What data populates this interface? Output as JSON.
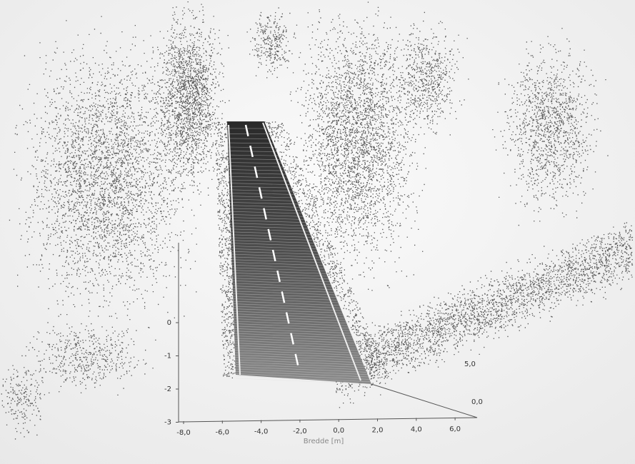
{
  "axes": {
    "x": {
      "label": "Bredde [m]",
      "ticks": [
        "-8,0",
        "-6,0",
        "-4,0",
        "-2,0",
        "0,0",
        "2,0",
        "4,0",
        "6,0"
      ]
    },
    "z": {
      "ticks": [
        "0",
        "-1",
        "-2",
        "-3"
      ]
    },
    "y": {
      "ticks": [
        "5,0",
        "0,0"
      ]
    }
  }
}
